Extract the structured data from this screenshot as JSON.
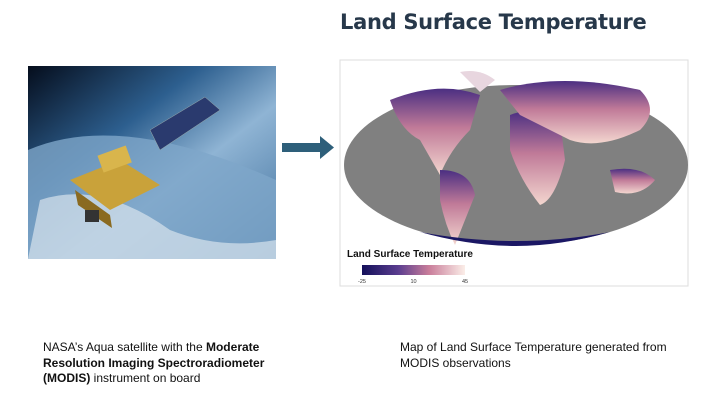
{
  "title": "Land Surface Temperature",
  "left_caption": {
    "parts": [
      "NASA’s Aqua satellite with the ",
      "Moderate Resolution Imaging Spectroradiometer (MODIS)",
      " instrument on board"
    ]
  },
  "map": {
    "legend_title": "Land Surface Temperature",
    "legend_ticks": [
      -25,
      10,
      45
    ]
  },
  "right_caption": "Map of Land Surface Temperature generated from MODIS observations"
}
